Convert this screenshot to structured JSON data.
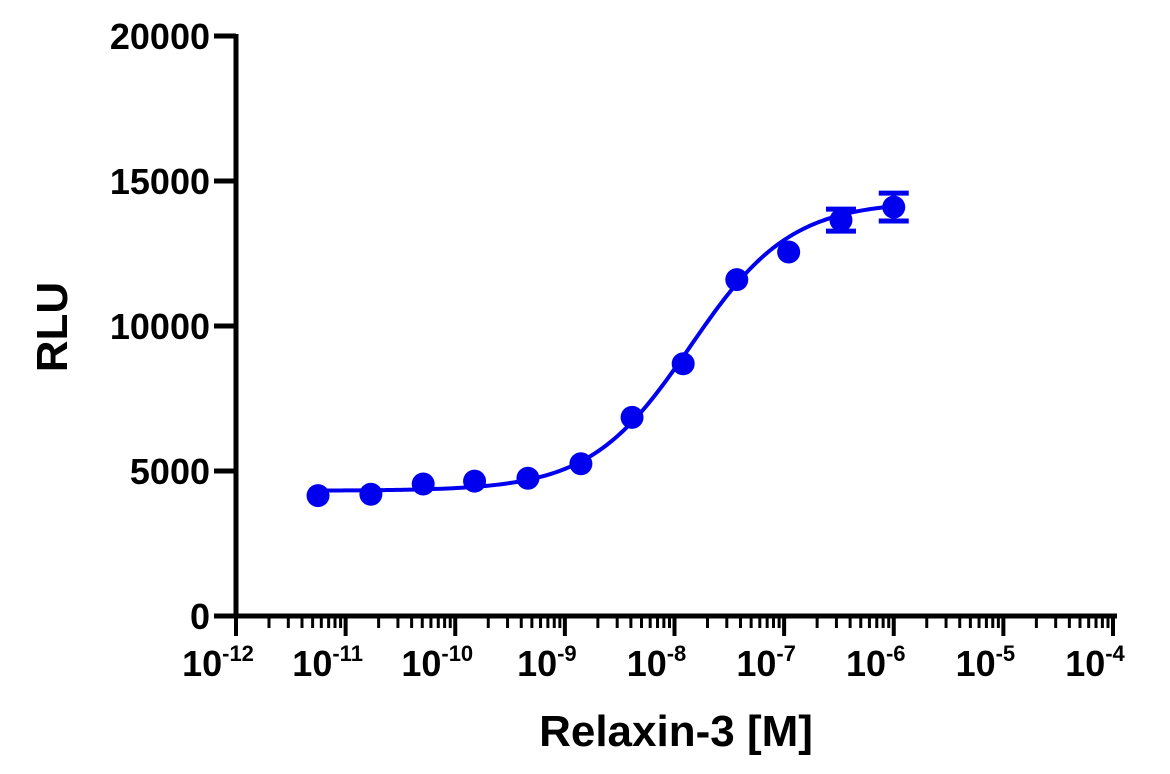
{
  "chart_data": {
    "type": "scatter",
    "xlabel": "Relaxin-3 [M]",
    "ylabel": "RLU",
    "xscale": "log",
    "xlim": [
      1e-12,
      0.0001
    ],
    "ylim": [
      0,
      20000
    ],
    "x_ticks": [
      {
        "base": "10",
        "exp": "-12",
        "value": 1e-12
      },
      {
        "base": "10",
        "exp": "-11",
        "value": 1e-11
      },
      {
        "base": "10",
        "exp": "-10",
        "value": 1e-10
      },
      {
        "base": "10",
        "exp": "-9",
        "value": 1e-09
      },
      {
        "base": "10",
        "exp": "-8",
        "value": 1e-08
      },
      {
        "base": "10",
        "exp": "-7",
        "value": 1e-07
      },
      {
        "base": "10",
        "exp": "-6",
        "value": 1e-06
      },
      {
        "base": "10",
        "exp": "-5",
        "value": 1e-05
      },
      {
        "base": "10",
        "exp": "-4",
        "value": 0.0001
      }
    ],
    "y_ticks": [
      {
        "label": "0",
        "value": 0
      },
      {
        "label": "5000",
        "value": 5000
      },
      {
        "label": "10000",
        "value": 10000
      },
      {
        "label": "15000",
        "value": 15000
      },
      {
        "label": "20000",
        "value": 20000
      }
    ],
    "grid": false,
    "color": "#0000ee",
    "series": [
      {
        "x": [
          5.6e-12,
          1.7e-11,
          5.1e-11,
          1.5e-10,
          4.6e-10,
          1.4e-09,
          4.1e-09,
          1.2e-08,
          3.7e-08,
          1.1e-07,
          3.3e-07,
          1e-06
        ],
        "y": [
          4150,
          4200,
          4550,
          4650,
          4750,
          5250,
          6850,
          8700,
          11600,
          12550,
          13650,
          14100
        ],
        "err": [
          0,
          0,
          0,
          0,
          0,
          0,
          0,
          0,
          0,
          0,
          380,
          480
        ]
      }
    ],
    "fit": {
      "model": "4PL",
      "bottom": 4320,
      "top": 14300,
      "ec50": 1.4e-08,
      "hill": 0.95,
      "x_range": [
        5.6e-12,
        1e-06
      ]
    }
  }
}
